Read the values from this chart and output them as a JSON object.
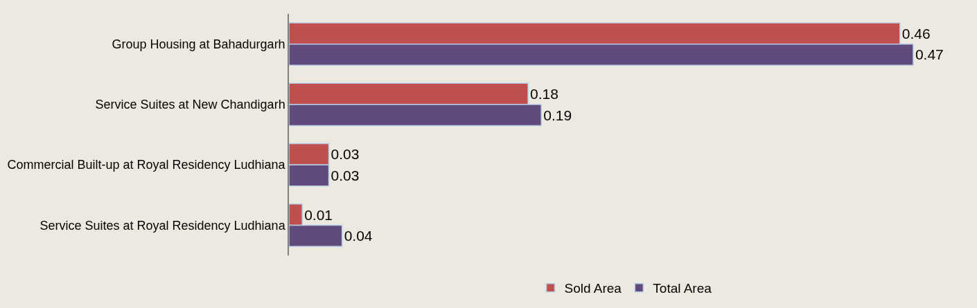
{
  "chart_data": {
    "type": "bar",
    "orientation": "horizontal",
    "categories": [
      "Group Housing at Bahadurgarh",
      "Service Suites at New Chandigarh",
      "Commercial Built-up at Royal Residency Ludhiana",
      "Service Suites at Royal Residency Ludhiana"
    ],
    "series": [
      {
        "name": "Sold Area",
        "color": "#c0504d",
        "values": [
          0.46,
          0.18,
          0.03,
          0.01
        ]
      },
      {
        "name": "Total Area",
        "color": "#604a7b",
        "values": [
          0.47,
          0.19,
          0.03,
          0.04
        ]
      }
    ],
    "data_labels": true,
    "legend": "bottom",
    "grid": false
  }
}
